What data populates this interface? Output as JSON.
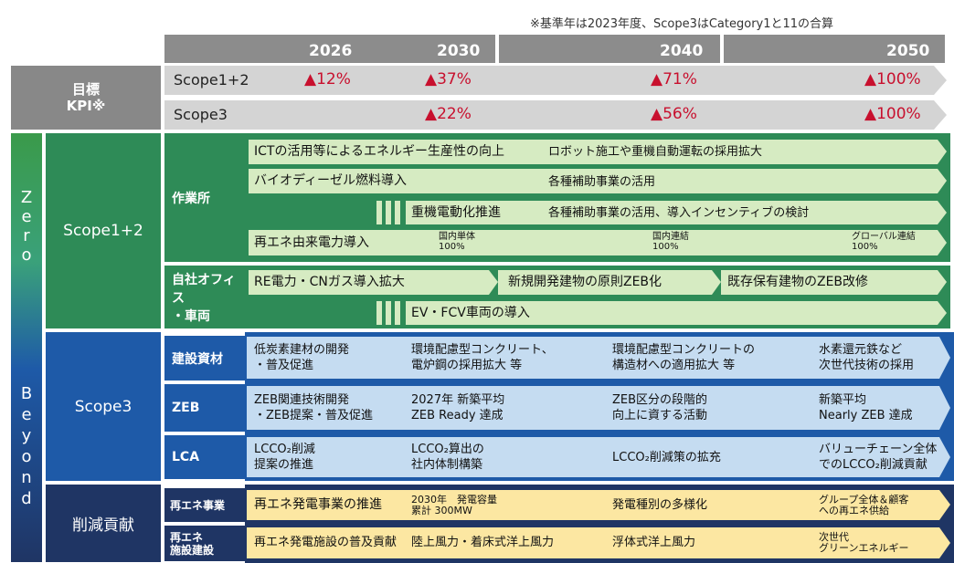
{
  "note": "※基準年は2023年度、Scope3はCategory1と11の合算",
  "years": [
    "2026",
    "2030",
    "2040",
    "2050"
  ],
  "colors": {
    "green_dark": "#2e8b57",
    "green_light": "#d6ebc2",
    "blue_dark": "#1e5aa8",
    "blue_light": "#c5dcf1",
    "navy": "#1f3564",
    "yellow": "#fce7a2",
    "gray_dark": "#888888",
    "gray_light": "#d4d4d4",
    "red": "#c8102e"
  },
  "kpi": {
    "label_line1": "目標",
    "label_line2": "KPI※",
    "rows": [
      {
        "scope": "Scope1+2",
        "values": [
          "▲12%",
          "▲37%",
          "▲71%",
          "▲100%"
        ]
      },
      {
        "scope": "Scope3",
        "values": [
          "▲22%",
          "▲56%",
          "▲100%"
        ]
      }
    ]
  },
  "zero_beyond": {
    "zero": [
      "Z",
      "e",
      "r",
      "o"
    ],
    "beyond": [
      "B",
      "e",
      "y",
      "o",
      "n",
      "d"
    ]
  },
  "scope12": {
    "label": "Scope1+2",
    "worksite": {
      "label": "作業所",
      "row1": {
        "a": "ICTの活用等によるエネルギー生産性の向上",
        "b": "ロボット施工や重機自動運転の採用拡大"
      },
      "row2": {
        "a": "バイオディーゼル燃料導入",
        "b": "各種補助事業の活用"
      },
      "row3": {
        "a": "重機電動化推進",
        "b": "各種補助事業の活用、導入インセンティブの検討"
      },
      "row4": {
        "a": "再エネ由来電力導入",
        "m1": "国内単体",
        "m1v": "100%",
        "m2": "国内連結",
        "m2v": "100%",
        "m3": "グローバル連結",
        "m3v": "100%"
      }
    },
    "office": {
      "label1": "自社オフィス",
      "label2": "・車両",
      "row1": {
        "a": "RE電力・CNガス導入拡大",
        "b": "新規開発建物の原則ZEB化",
        "c": "既存保有建物のZEB改修"
      },
      "row2": {
        "a": "EV・FCV車両の導入"
      }
    }
  },
  "scope3": {
    "label": "Scope3",
    "materials": {
      "label": "建設資材",
      "c1a": "低炭素建材の開発",
      "c1b": "・普及促進",
      "c2a": "環境配慮型コンクリート、",
      "c2b": "電炉鋼の採用拡大 等",
      "c3a": "環境配慮型コンクリートの",
      "c3b": "構造材への適用拡大 等",
      "c4a": "水素還元鉄など",
      "c4b": "次世代技術の採用"
    },
    "zeb": {
      "label": "ZEB",
      "c1a": "ZEB関連技術開発",
      "c1b": "・ZEB提案・普及促進",
      "c2a": "2027年 新築平均",
      "c2b": "ZEB Ready 達成",
      "c3a": "ZEB区分の段階的",
      "c3b": "向上に資する活動",
      "c4a": "新築平均",
      "c4b": "Nearly ZEB 達成"
    },
    "lca": {
      "label": "LCA",
      "c1a": "LCCO₂削減",
      "c1b": "提案の推進",
      "c2a": "LCCO₂算出の",
      "c2b": "社内体制構築",
      "c3": "LCCO₂削減策の拡充",
      "c4a": "バリューチェーン全体",
      "c4b": "でのLCCO₂削減貢献"
    }
  },
  "contribution": {
    "label": "削減貢献",
    "renewable": {
      "label": "再エネ事業",
      "c1": "再エネ発電事業の推進",
      "c2a": "2030年　発電容量",
      "c2b": "累計 300MW",
      "c3": "発電種別の多様化",
      "c4a": "グループ全体＆顧客",
      "c4b": "への再エネ供給"
    },
    "facility": {
      "label1": "再エネ",
      "label2": "施設建設",
      "c1": "再エネ発電施設の普及貢献",
      "c2": "陸上風力・着床式洋上風力",
      "c3": "浮体式洋上風力",
      "c4a": "次世代",
      "c4b": "グリーンエネルギー"
    }
  }
}
